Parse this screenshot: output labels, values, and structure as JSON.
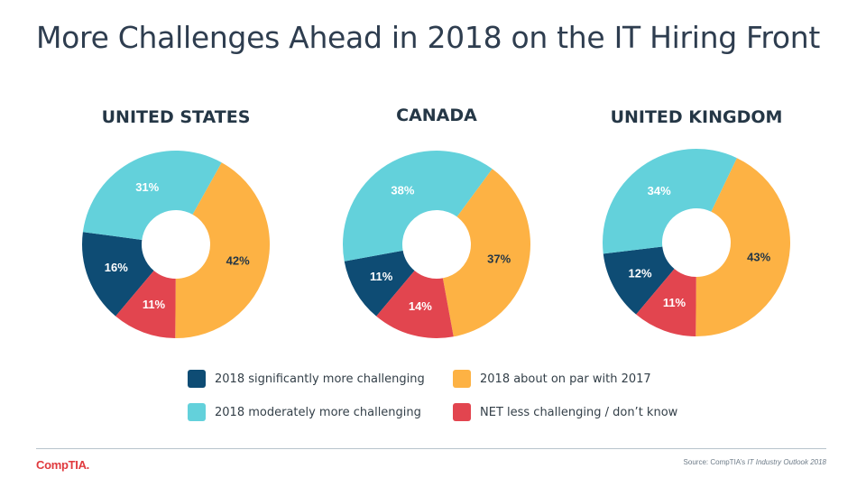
{
  "title": "More Challenges Ahead in 2018 on the IT Hiring Front",
  "colors": {
    "significantly": "#0e4c74",
    "moderately": "#63d1db",
    "on_par": "#fdb244",
    "less": "#e2454f"
  },
  "legend": [
    {
      "label": "2018 significantly more challenging",
      "key": "significantly"
    },
    {
      "label": "2018 moderately more challenging",
      "key": "moderately"
    },
    {
      "label": "2018 about on par with 2017",
      "key": "on_par"
    },
    {
      "label": "NET less challenging / don’t know",
      "key": "less"
    }
  ],
  "chart_data": [
    {
      "type": "pie",
      "title": "UNITED STATES",
      "slices": [
        {
          "series": "2018 significantly more challenging",
          "key": "significantly",
          "value": 16,
          "label": "16%"
        },
        {
          "series": "2018 moderately more challenging",
          "key": "moderately",
          "value": 31,
          "label": "31%"
        },
        {
          "series": "2018 about on par with 2017",
          "key": "on_par",
          "value": 42,
          "label": "42%"
        },
        {
          "series": "NET less challenging / don’t know",
          "key": "less",
          "value": 11,
          "label": "11%"
        }
      ]
    },
    {
      "type": "pie",
      "title": "CANADA",
      "slices": [
        {
          "series": "2018 significantly more challenging",
          "key": "significantly",
          "value": 11,
          "label": "11%"
        },
        {
          "series": "2018 moderately more challenging",
          "key": "moderately",
          "value": 38,
          "label": "38%"
        },
        {
          "series": "2018 about on par with 2017",
          "key": "on_par",
          "value": 37,
          "label": "37%"
        },
        {
          "series": "NET less challenging / don’t know",
          "key": "less",
          "value": 14,
          "label": "14%"
        }
      ]
    },
    {
      "type": "pie",
      "title": "UNITED KINGDOM",
      "slices": [
        {
          "series": "2018 significantly more challenging",
          "key": "significantly",
          "value": 12,
          "label": "12%"
        },
        {
          "series": "2018 moderately more challenging",
          "key": "moderately",
          "value": 34,
          "label": "34%"
        },
        {
          "series": "2018 about on par with 2017",
          "key": "on_par",
          "value": 43,
          "label": "43%"
        },
        {
          "series": "NET less challenging / don’t know",
          "key": "less",
          "value": 11,
          "label": "11%"
        }
      ]
    }
  ],
  "footer": {
    "logo_text": "CompTIA.",
    "source_prefix": "Source: CompTIA’s ",
    "source_italic": "IT Industry Outlook 2018"
  }
}
